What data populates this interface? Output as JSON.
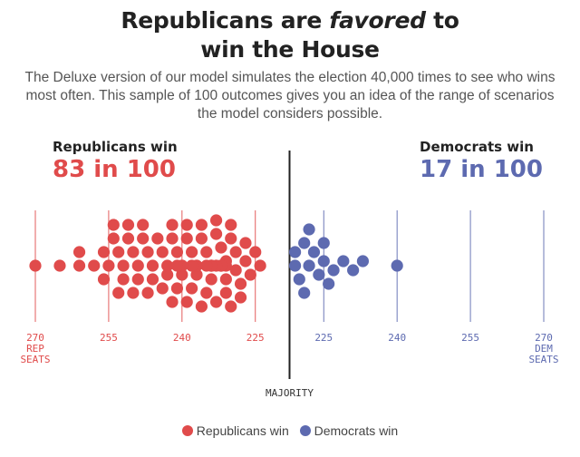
{
  "title": {
    "line1_before": "Republicans are ",
    "line1_emph": "favored",
    "line1_after": " to",
    "line2": "win the House"
  },
  "subtitle": "The Deluxe version of our model simulates the election 40,000 times to see who wins most often. This sample of 100 outcomes gives you an idea of the range of scenarios the model considers possible.",
  "left_side": {
    "label": "Republicans win",
    "value": "83 in 100"
  },
  "right_side": {
    "label": "Democrats win",
    "value": "17 in 100"
  },
  "colors": {
    "rep": "#e04b4b",
    "dem": "#5d6ab0",
    "majority_line": "#222222",
    "gridline_rep": "#e04b4b",
    "gridline_dem": "#5d6ab0"
  },
  "legend": [
    {
      "label": "Republicans win",
      "color": "#e04b4b"
    },
    {
      "label": "Democrats win",
      "color": "#5d6ab0"
    }
  ],
  "chart_data": {
    "type": "scatter",
    "subtype": "beeswarm",
    "axis_ticks": [
      {
        "label": "270",
        "sublabel": [
          "REP",
          "SEATS"
        ],
        "party": "rep"
      },
      {
        "label": "255",
        "party": "rep"
      },
      {
        "label": "240",
        "party": "rep"
      },
      {
        "label": "225",
        "party": "rep"
      },
      {
        "label": "225",
        "party": "dem"
      },
      {
        "label": "240",
        "party": "dem"
      },
      {
        "label": "255",
        "party": "dem"
      },
      {
        "label": "270",
        "sublabel": [
          "DEM",
          "SEATS"
        ],
        "party": "dem"
      }
    ],
    "majority_label": "MAJORITY",
    "rep_seat_outcomes": [
      270,
      265,
      261,
      261,
      258,
      256,
      256,
      255,
      254,
      254,
      253,
      253,
      252,
      252,
      251,
      251,
      250,
      250,
      249,
      249,
      248,
      248,
      247,
      247,
      246,
      246,
      245,
      244,
      244,
      243,
      243,
      242,
      242,
      242,
      241,
      241,
      241,
      240,
      240,
      240,
      239,
      239,
      239,
      238,
      238,
      238,
      237,
      237,
      237,
      236,
      236,
      236,
      235,
      235,
      235,
      234,
      234,
      234,
      234,
      233,
      233,
      233,
      233,
      232,
      232,
      232,
      232,
      231,
      231,
      231,
      231,
      230,
      230,
      230,
      229,
      229,
      228,
      228,
      227,
      227,
      226,
      225,
      224
    ],
    "dem_seat_outcomes": [
      218,
      219,
      220,
      221,
      221,
      222,
      222,
      223,
      224,
      225,
      225,
      226,
      227,
      229,
      231,
      233,
      240
    ]
  }
}
